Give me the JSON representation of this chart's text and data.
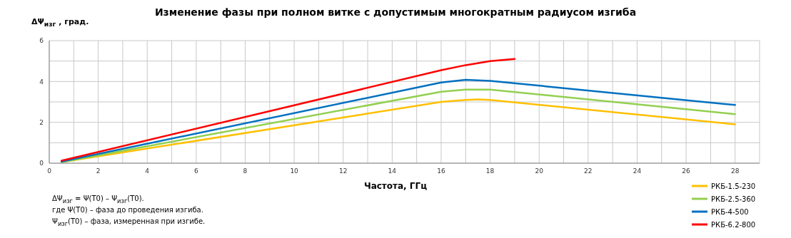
{
  "chart_data": {
    "type": "line",
    "title": "Изменение фазы при полном витке с допустимым многократным радиусом изгиба",
    "xlabel": "Частота, ГГц",
    "ylabel": "ΔΨ$_{изг}$ , град.",
    "annotations": [
      "ΔΨ$_{изг}$ = Ψ(T0) – Ψ$_{изг}$(T0).",
      "где Ψ(T0) – фаза до проведения изгиба.",
      "Ψ$_{изг}$(T0) – фаза, измеренная при изгибе."
    ],
    "series": [
      {
        "name": "РКБ-1.5-230",
        "color": "#ffc000",
        "x": [
          0.5,
          16,
          17,
          17.5,
          18,
          28
        ],
        "values": [
          0.05,
          3.0,
          3.1,
          3.12,
          3.1,
          1.9
        ]
      },
      {
        "name": "РКБ-2.5-360",
        "color": "#92d050",
        "x": [
          0.5,
          16,
          17,
          18,
          28
        ],
        "values": [
          0.05,
          3.5,
          3.6,
          3.6,
          2.4
        ]
      },
      {
        "name": "РКБ-4-500",
        "color": "#0070c0",
        "x": [
          0.5,
          16,
          17,
          18,
          28
        ],
        "values": [
          0.08,
          3.95,
          4.08,
          4.03,
          2.85
        ]
      },
      {
        "name": "РКБ-6.2-800",
        "color": "#ff0000",
        "x": [
          0.5,
          16,
          17,
          18,
          19
        ],
        "values": [
          0.12,
          4.55,
          4.8,
          5.0,
          5.1
        ]
      }
    ],
    "xlim": [
      0,
      29
    ],
    "xticks": [
      0,
      {
        "value": 1,
        "label": null
      },
      2,
      {
        "value": 3,
        "label": null
      },
      4,
      {
        "value": 5,
        "label": null
      },
      6,
      {
        "value": 7,
        "label": null
      },
      8,
      {
        "value": 9,
        "label": null
      },
      10,
      {
        "value": 11,
        "label": null
      },
      12,
      {
        "value": 13,
        "label": null
      },
      14,
      {
        "value": 15,
        "label": null
      },
      16,
      {
        "value": 17,
        "label": null
      },
      18,
      {
        "value": 19,
        "label": null
      },
      20,
      {
        "value": 21,
        "label": null
      },
      22,
      {
        "value": 23,
        "label": null
      },
      24,
      {
        "value": 25,
        "label": null
      },
      26,
      {
        "value": 27,
        "label": null
      },
      28,
      {
        "value": 29,
        "label": null
      }
    ],
    "ylim": [
      0,
      6
    ],
    "yticks": [
      0,
      {
        "value": 1,
        "label": null
      },
      2,
      {
        "value": 3,
        "label": null
      },
      4,
      {
        "value": 5,
        "label": null
      },
      6
    ],
    "grid": true,
    "legend": "bottom right",
    "marker": "none",
    "line_style": "solid"
  }
}
